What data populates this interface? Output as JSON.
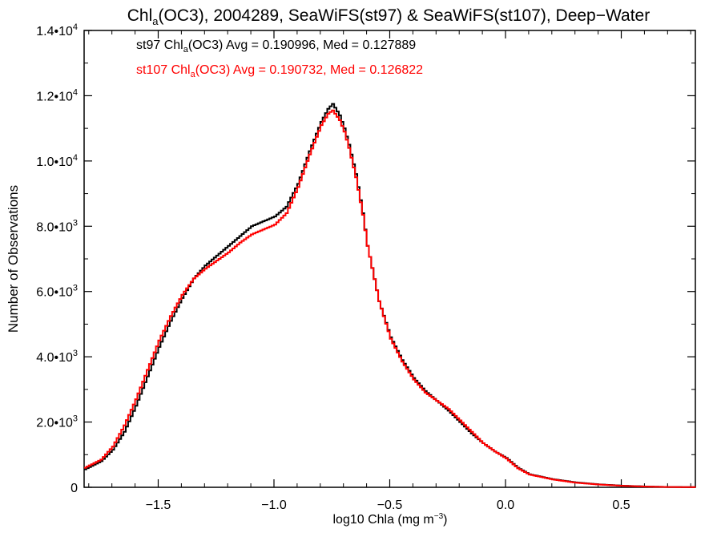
{
  "chart_data": {
    "type": "line",
    "title_main": "Chl",
    "title_sub": "a",
    "title_rest": "(OC3), 2004289, SeaWiFS(st97) & SeaWiFS(st107), Deep−Water",
    "xlabel_main": "log10 Chla (mg m",
    "xlabel_sup": "−3",
    "xlabel_end": ")",
    "ylabel": "Number of Observations",
    "xlim": [
      -1.82,
      0.82
    ],
    "ylim": [
      0,
      14000
    ],
    "x_ticks": [
      {
        "value": -1.5,
        "label": "−1.5"
      },
      {
        "value": -1.0,
        "label": "−1.0"
      },
      {
        "value": -0.5,
        "label": "−0.5"
      },
      {
        "value": 0.0,
        "label": "0.0"
      },
      {
        "value": 0.5,
        "label": "0.5"
      }
    ],
    "y_ticks": [
      {
        "value": 0,
        "mant": "0",
        "exp": ""
      },
      {
        "value": 2000,
        "mant": "2.0•10",
        "exp": "3"
      },
      {
        "value": 4000,
        "mant": "4.0•10",
        "exp": "3"
      },
      {
        "value": 6000,
        "mant": "6.0•10",
        "exp": "3"
      },
      {
        "value": 8000,
        "mant": "8.0•10",
        "exp": "3"
      },
      {
        "value": 10000,
        "mant": "1.0•10",
        "exp": "4"
      },
      {
        "value": 12000,
        "mant": "1.2•10",
        "exp": "4"
      },
      {
        "value": 14000,
        "mant": "1.4•10",
        "exp": "4"
      }
    ],
    "legend": [
      {
        "prefix": "st97 Chl",
        "sub": "a",
        "suffix": "(OC3) Avg = 0.190996, Med = 0.127889",
        "color": "#000000"
      },
      {
        "prefix": "st107 Chl",
        "sub": "a",
        "suffix": "(OC3) Avg = 0.190732, Med = 0.126822",
        "color": "#ff0000"
      }
    ],
    "series": [
      {
        "color": "#000000",
        "points": [
          [
            -1.82,
            550
          ],
          [
            -1.75,
            800
          ],
          [
            -1.7,
            1150
          ],
          [
            -1.65,
            1700
          ],
          [
            -1.6,
            2500
          ],
          [
            -1.55,
            3400
          ],
          [
            -1.5,
            4300
          ],
          [
            -1.45,
            5100
          ],
          [
            -1.4,
            5800
          ],
          [
            -1.35,
            6400
          ],
          [
            -1.3,
            6800
          ],
          [
            -1.25,
            7100
          ],
          [
            -1.2,
            7400
          ],
          [
            -1.15,
            7700
          ],
          [
            -1.1,
            8000
          ],
          [
            -1.05,
            8150
          ],
          [
            -1.0,
            8300
          ],
          [
            -0.95,
            8600
          ],
          [
            -0.9,
            9300
          ],
          [
            -0.85,
            10300
          ],
          [
            -0.8,
            11200
          ],
          [
            -0.77,
            11600
          ],
          [
            -0.75,
            11750
          ],
          [
            -0.72,
            11400
          ],
          [
            -0.7,
            11000
          ],
          [
            -0.68,
            10500
          ],
          [
            -0.65,
            9600
          ],
          [
            -0.62,
            8400
          ],
          [
            -0.6,
            7400
          ],
          [
            -0.55,
            5700
          ],
          [
            -0.5,
            4600
          ],
          [
            -0.45,
            3900
          ],
          [
            -0.4,
            3350
          ],
          [
            -0.35,
            2950
          ],
          [
            -0.3,
            2650
          ],
          [
            -0.25,
            2350
          ],
          [
            -0.2,
            2000
          ],
          [
            -0.15,
            1650
          ],
          [
            -0.1,
            1350
          ],
          [
            -0.05,
            1100
          ],
          [
            0.0,
            900
          ],
          [
            0.05,
            600
          ],
          [
            0.1,
            400
          ],
          [
            0.2,
            250
          ],
          [
            0.3,
            150
          ],
          [
            0.4,
            90
          ],
          [
            0.5,
            50
          ],
          [
            0.6,
            25
          ],
          [
            0.7,
            10
          ],
          [
            0.82,
            5
          ]
        ]
      },
      {
        "color": "#ff0000",
        "points": [
          [
            -1.82,
            600
          ],
          [
            -1.75,
            850
          ],
          [
            -1.7,
            1250
          ],
          [
            -1.65,
            1900
          ],
          [
            -1.6,
            2700
          ],
          [
            -1.55,
            3600
          ],
          [
            -1.5,
            4500
          ],
          [
            -1.45,
            5250
          ],
          [
            -1.4,
            5900
          ],
          [
            -1.35,
            6400
          ],
          [
            -1.3,
            6700
          ],
          [
            -1.25,
            6950
          ],
          [
            -1.2,
            7200
          ],
          [
            -1.15,
            7500
          ],
          [
            -1.1,
            7750
          ],
          [
            -1.05,
            7900
          ],
          [
            -1.0,
            8050
          ],
          [
            -0.95,
            8400
          ],
          [
            -0.9,
            9200
          ],
          [
            -0.85,
            10200
          ],
          [
            -0.8,
            11100
          ],
          [
            -0.77,
            11450
          ],
          [
            -0.75,
            11550
          ],
          [
            -0.72,
            11250
          ],
          [
            -0.7,
            10900
          ],
          [
            -0.68,
            10400
          ],
          [
            -0.65,
            9500
          ],
          [
            -0.62,
            8350
          ],
          [
            -0.6,
            7400
          ],
          [
            -0.55,
            5700
          ],
          [
            -0.5,
            4550
          ],
          [
            -0.45,
            3850
          ],
          [
            -0.4,
            3300
          ],
          [
            -0.35,
            2900
          ],
          [
            -0.3,
            2650
          ],
          [
            -0.25,
            2400
          ],
          [
            -0.2,
            2050
          ],
          [
            -0.15,
            1700
          ],
          [
            -0.1,
            1350
          ],
          [
            -0.05,
            1100
          ],
          [
            0.0,
            880
          ],
          [
            0.05,
            580
          ],
          [
            0.1,
            390
          ],
          [
            0.2,
            240
          ],
          [
            0.3,
            140
          ],
          [
            0.4,
            85
          ],
          [
            0.5,
            45
          ],
          [
            0.6,
            22
          ],
          [
            0.7,
            9
          ],
          [
            0.82,
            4
          ]
        ]
      }
    ]
  }
}
